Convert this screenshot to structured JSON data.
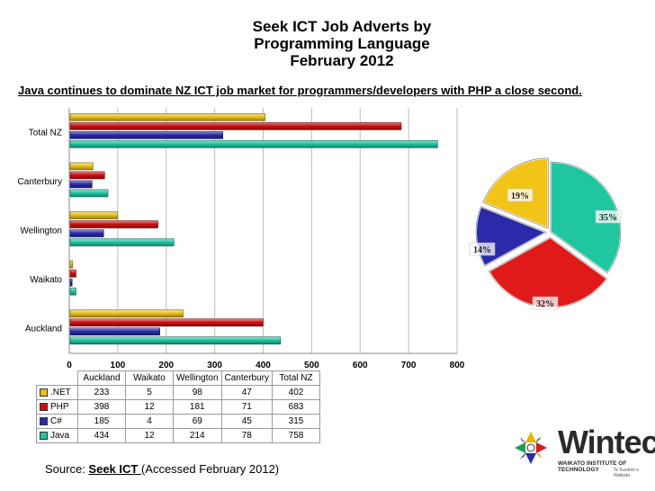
{
  "chart_data": [
    {
      "type": "bar",
      "orientation": "horizontal",
      "title": "Seek ICT Job Adverts by\nProgramming Language\nFebruary 2012",
      "subtitle": "Java continues to dominate NZ ICT job market for programmers/developers with PHP a close second.",
      "categories": [
        "Auckland",
        "Waikato",
        "Wellington",
        "Canterbury",
        "Total NZ"
      ],
      "series": [
        {
          "name": ".NET",
          "values": [
            233,
            5,
            98,
            47,
            402
          ],
          "color": "#e8c11a"
        },
        {
          "name": "PHP",
          "values": [
            398,
            12,
            181,
            71,
            683
          ],
          "color": "#cc1111"
        },
        {
          "name": "C#",
          "values": [
            185,
            4,
            69,
            45,
            315
          ],
          "color": "#2a2aaa"
        },
        {
          "name": "Java",
          "values": [
            434,
            12,
            214,
            78,
            758
          ],
          "color": "#1fc6a0"
        }
      ],
      "xlim": [
        0,
        800
      ],
      "x_ticks": [
        "0",
        "100",
        "200",
        "300",
        "400",
        "500",
        "600",
        "700",
        "800"
      ],
      "grid": true,
      "legend": "data table below chart"
    },
    {
      "type": "pie",
      "labels": [
        "Java",
        "PHP",
        "C#",
        ".NET"
      ],
      "values": [
        35,
        32,
        14,
        19
      ],
      "value_labels": [
        "35%",
        "32%",
        "14%",
        "19%"
      ],
      "colors": [
        "#1fc6a0",
        "#e01a1a",
        "#2a2aaa",
        "#f2c418"
      ]
    }
  ],
  "source": {
    "prefix": "Source: ",
    "link": "Seek ICT ",
    "suffix": "(Accessed February 2012)"
  },
  "logo": {
    "name": "Wintec",
    "sub": "WAIKATO INSTITUTE OF TECHNOLOGY",
    "tagline": "Te Kuratini o Waikato"
  }
}
